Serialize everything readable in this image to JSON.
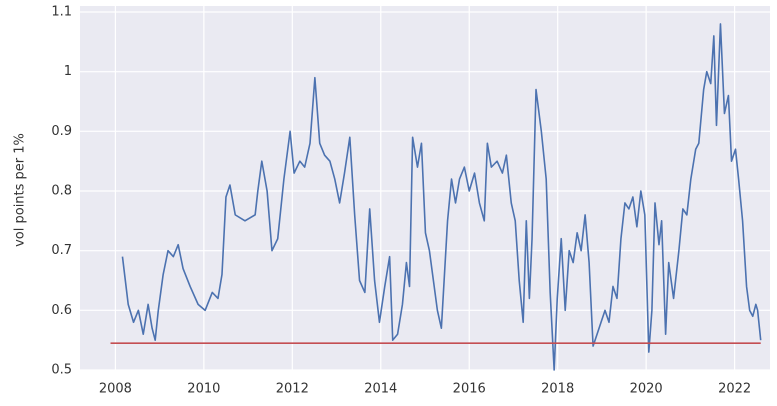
{
  "chart_data": {
    "type": "line",
    "ylabel": "vol points per 1%",
    "xlim": [
      2007.2,
      2022.8
    ],
    "ylim": [
      0.5,
      1.1
    ],
    "xticks": [
      2008,
      2010,
      2012,
      2014,
      2016,
      2018,
      2020,
      2022
    ],
    "yticks": [
      0.5,
      0.6,
      0.7,
      0.8,
      0.9,
      1.0,
      1.1
    ],
    "grid": true,
    "background": "#eaeaf2",
    "series": [
      {
        "color": "#4c72b0",
        "x": [
          2008.16,
          2008.29,
          2008.41,
          2008.52,
          2008.63,
          2008.74,
          2008.83,
          2008.9,
          2008.97,
          2009.08,
          2009.19,
          2009.31,
          2009.42,
          2009.53,
          2009.69,
          2009.87,
          2010.03,
          2010.19,
          2010.32,
          2010.41,
          2010.5,
          2010.59,
          2010.71,
          2010.93,
          2011.16,
          2011.22,
          2011.31,
          2011.43,
          2011.54,
          2011.67,
          2011.81,
          2011.95,
          2012.04,
          2012.17,
          2012.28,
          2012.4,
          2012.51,
          2012.62,
          2012.73,
          2012.85,
          2012.96,
          2013.07,
          2013.18,
          2013.3,
          2013.41,
          2013.52,
          2013.64,
          2013.75,
          2013.86,
          2013.97,
          2014.09,
          2014.2,
          2014.27,
          2014.38,
          2014.49,
          2014.58,
          2014.65,
          2014.72,
          2014.83,
          2014.92,
          2015.01,
          2015.1,
          2015.19,
          2015.28,
          2015.37,
          2015.44,
          2015.51,
          2015.6,
          2015.69,
          2015.78,
          2015.89,
          2016.0,
          2016.12,
          2016.23,
          2016.34,
          2016.41,
          2016.5,
          2016.63,
          2016.75,
          2016.84,
          2016.95,
          2017.04,
          2017.13,
          2017.22,
          2017.29,
          2017.36,
          2017.42,
          2017.51,
          2017.63,
          2017.74,
          2017.83,
          2017.92,
          2017.99,
          2018.08,
          2018.17,
          2018.26,
          2018.35,
          2018.44,
          2018.53,
          2018.62,
          2018.71,
          2018.8,
          2018.89,
          2018.98,
          2019.07,
          2019.16,
          2019.25,
          2019.34,
          2019.43,
          2019.52,
          2019.61,
          2019.7,
          2019.79,
          2019.88,
          2019.97,
          2020.06,
          2020.13,
          2020.2,
          2020.29,
          2020.35,
          2020.44,
          2020.51,
          2020.62,
          2020.74,
          2020.83,
          2020.92,
          2021.01,
          2021.12,
          2021.19,
          2021.3,
          2021.37,
          2021.46,
          2021.53,
          2021.59,
          2021.68,
          2021.77,
          2021.86,
          2021.93,
          2022.02,
          2022.09,
          2022.18,
          2022.27,
          2022.34,
          2022.41,
          2022.48,
          2022.52,
          2022.59
        ],
        "values": [
          0.69,
          0.61,
          0.58,
          0.6,
          0.56,
          0.61,
          0.57,
          0.55,
          0.6,
          0.66,
          0.7,
          0.69,
          0.71,
          0.67,
          0.64,
          0.61,
          0.6,
          0.63,
          0.62,
          0.66,
          0.79,
          0.81,
          0.76,
          0.75,
          0.76,
          0.8,
          0.85,
          0.8,
          0.7,
          0.72,
          0.82,
          0.9,
          0.83,
          0.85,
          0.84,
          0.88,
          0.99,
          0.88,
          0.86,
          0.85,
          0.82,
          0.78,
          0.83,
          0.89,
          0.76,
          0.65,
          0.63,
          0.77,
          0.65,
          0.58,
          0.64,
          0.69,
          0.55,
          0.56,
          0.61,
          0.68,
          0.64,
          0.89,
          0.84,
          0.88,
          0.73,
          0.7,
          0.65,
          0.6,
          0.57,
          0.66,
          0.75,
          0.82,
          0.78,
          0.82,
          0.84,
          0.8,
          0.83,
          0.78,
          0.75,
          0.88,
          0.84,
          0.85,
          0.83,
          0.86,
          0.78,
          0.75,
          0.65,
          0.58,
          0.75,
          0.62,
          0.72,
          0.97,
          0.9,
          0.82,
          0.63,
          0.5,
          0.62,
          0.72,
          0.6,
          0.7,
          0.68,
          0.73,
          0.7,
          0.76,
          0.68,
          0.54,
          0.56,
          0.58,
          0.6,
          0.58,
          0.64,
          0.62,
          0.72,
          0.78,
          0.77,
          0.79,
          0.74,
          0.8,
          0.76,
          0.53,
          0.6,
          0.78,
          0.71,
          0.75,
          0.56,
          0.68,
          0.62,
          0.7,
          0.77,
          0.76,
          0.82,
          0.87,
          0.88,
          0.97,
          1.0,
          0.98,
          1.06,
          0.91,
          1.08,
          0.93,
          0.96,
          0.85,
          0.87,
          0.82,
          0.75,
          0.64,
          0.6,
          0.59,
          0.61,
          0.6,
          0.55
        ]
      },
      {
        "color": "#c44e52",
        "x": [
          2007.89,
          2022.59
        ],
        "values": [
          0.545,
          0.545
        ]
      }
    ]
  }
}
